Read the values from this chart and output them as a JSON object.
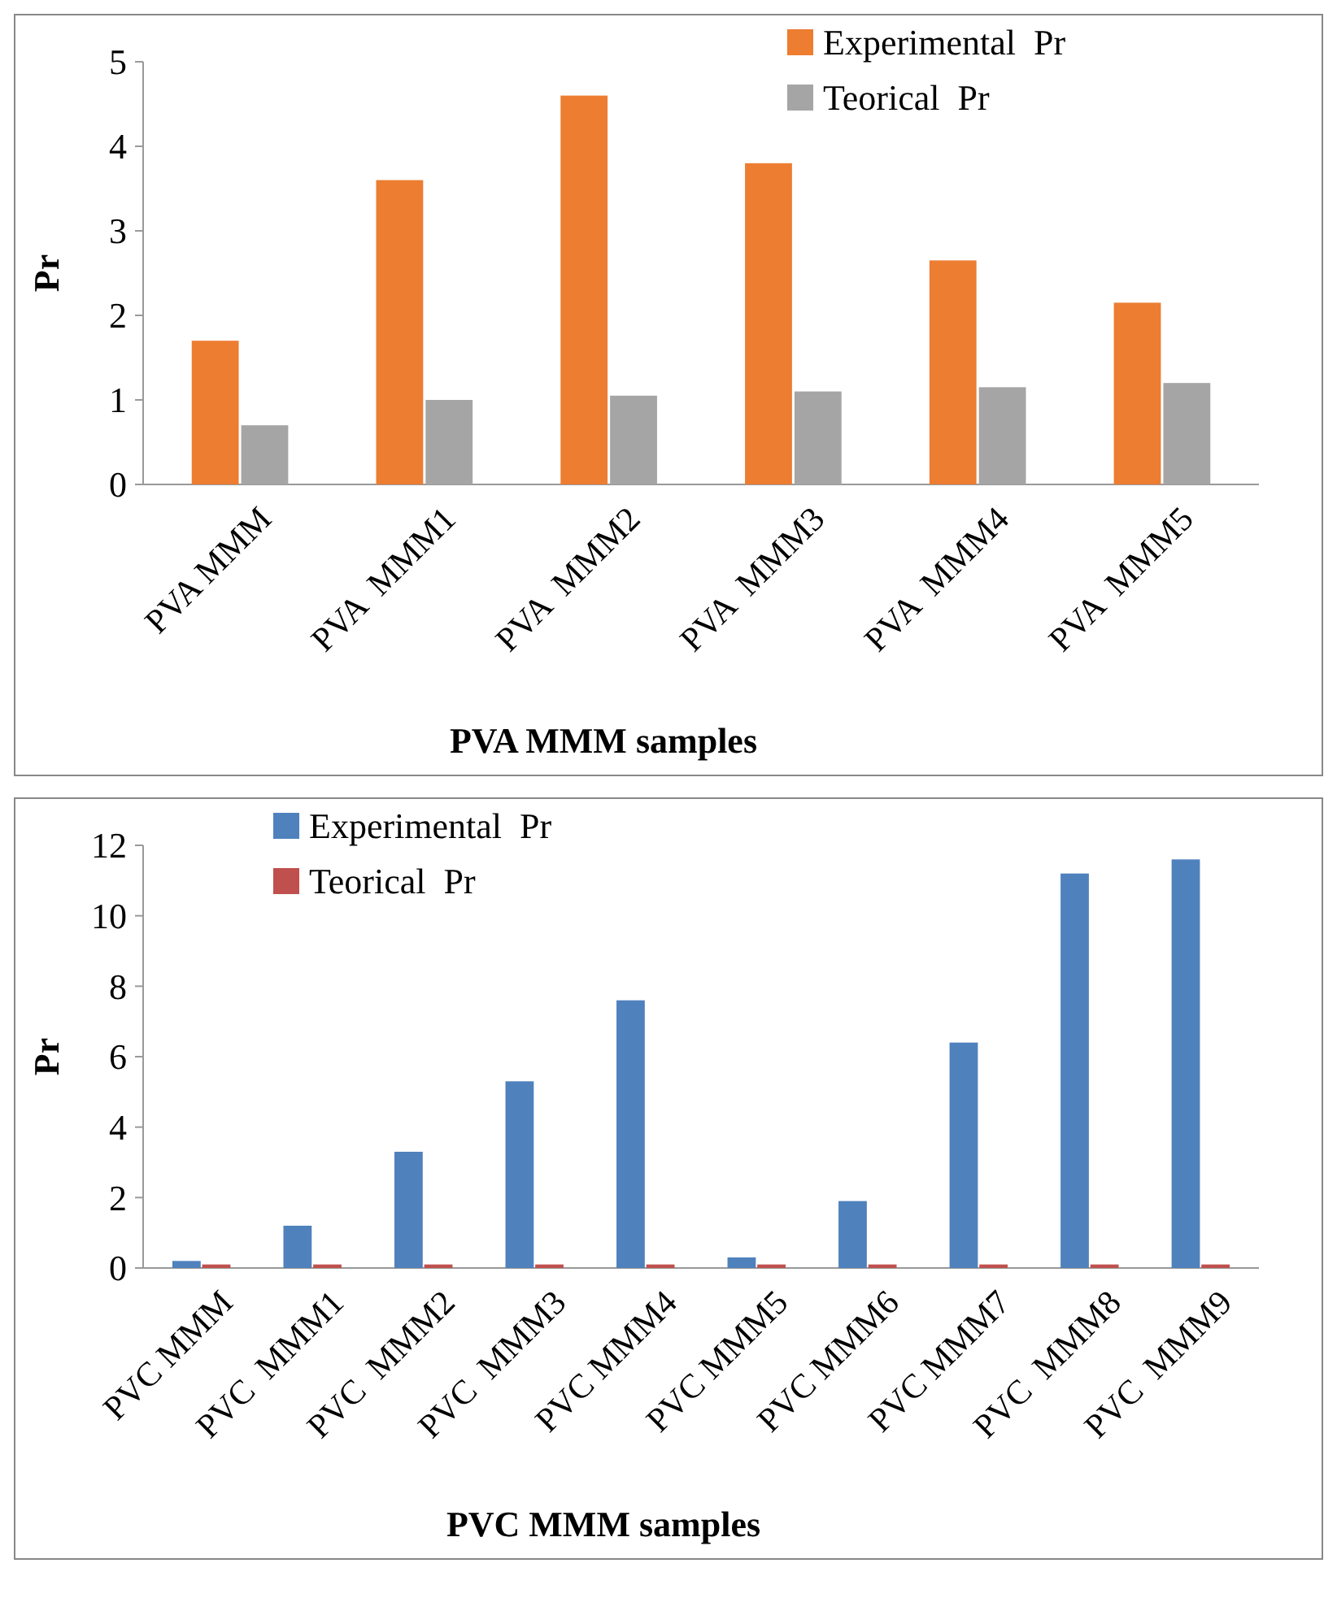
{
  "chart_data": [
    {
      "type": "bar",
      "xlabel": "PVA MMM samples",
      "ylabel": "Pr",
      "categories": [
        "PVA MMM",
        "PVA  MMM1",
        "PVA  MMM2",
        "PVA  MMM3",
        "PVA  MMM4",
        "PVA  MMM5"
      ],
      "series": [
        {
          "name": "Experimental  Pr",
          "color": "#ed7d31",
          "values": [
            1.7,
            3.6,
            4.6,
            3.8,
            2.65,
            2.15
          ]
        },
        {
          "name": "Teorical  Pr",
          "color": "#a5a5a5",
          "values": [
            0.7,
            1.0,
            1.05,
            1.1,
            1.15,
            1.2
          ]
        }
      ],
      "ylim": [
        0,
        5
      ],
      "yticks": [
        0,
        1,
        2,
        3,
        4,
        5
      ],
      "grid": false,
      "legend": "top right"
    },
    {
      "type": "bar",
      "xlabel": "PVC MMM samples",
      "ylabel": "Pr",
      "categories": [
        "PVC MMM",
        "PVC  MMM1",
        "PVC  MMM2",
        "PVC  MMM3",
        "PVC MMM4",
        "PVC MMM5",
        "PVC MMM6",
        "PVC MMM7",
        "PVC  MMM8",
        "PVC  MMM9"
      ],
      "series": [
        {
          "name": "Experimental  Pr",
          "color": "#4f81bd",
          "values": [
            0.2,
            1.2,
            3.3,
            5.3,
            7.6,
            0.3,
            1.9,
            6.4,
            11.2,
            11.6
          ]
        },
        {
          "name": "Teorical  Pr",
          "color": "#c0504d",
          "values": [
            0.1,
            0.1,
            0.1,
            0.1,
            0.1,
            0.1,
            0.1,
            0.1,
            0.1,
            0.1
          ]
        }
      ],
      "ylim": [
        0,
        12
      ],
      "yticks": [
        0,
        2,
        4,
        6,
        8,
        10,
        12
      ],
      "grid": false,
      "legend": "top left"
    }
  ]
}
